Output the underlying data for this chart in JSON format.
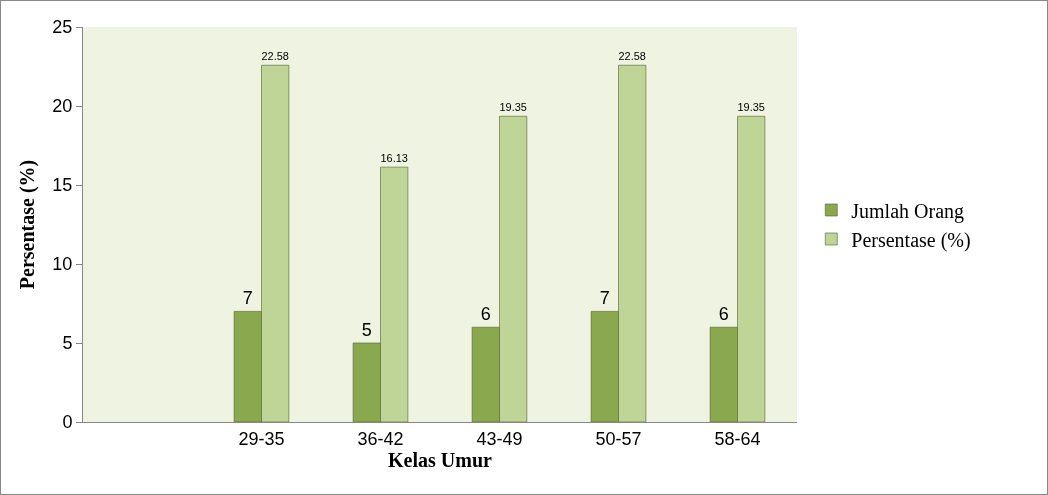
{
  "chart_data": {
    "type": "bar",
    "xlabel": "Kelas Umur",
    "ylabel": "Persentase (%)",
    "categories": [
      null,
      "29-35",
      "36-42",
      "43-49",
      "50-57",
      "58-64"
    ],
    "series": [
      {
        "name": "Jumlah Orang",
        "color": "#8aa84e",
        "values": [
          null,
          7,
          5,
          6,
          7,
          6
        ]
      },
      {
        "name": "Persentase (%)",
        "color": "#bed597",
        "values": [
          null,
          22.58,
          16.13,
          19.35,
          22.58,
          19.35
        ]
      }
    ],
    "ylim": [
      0,
      25
    ],
    "yticks": [
      0,
      5,
      10,
      15,
      20,
      25
    ],
    "grid": false,
    "legend": "right",
    "data_labels": true
  }
}
